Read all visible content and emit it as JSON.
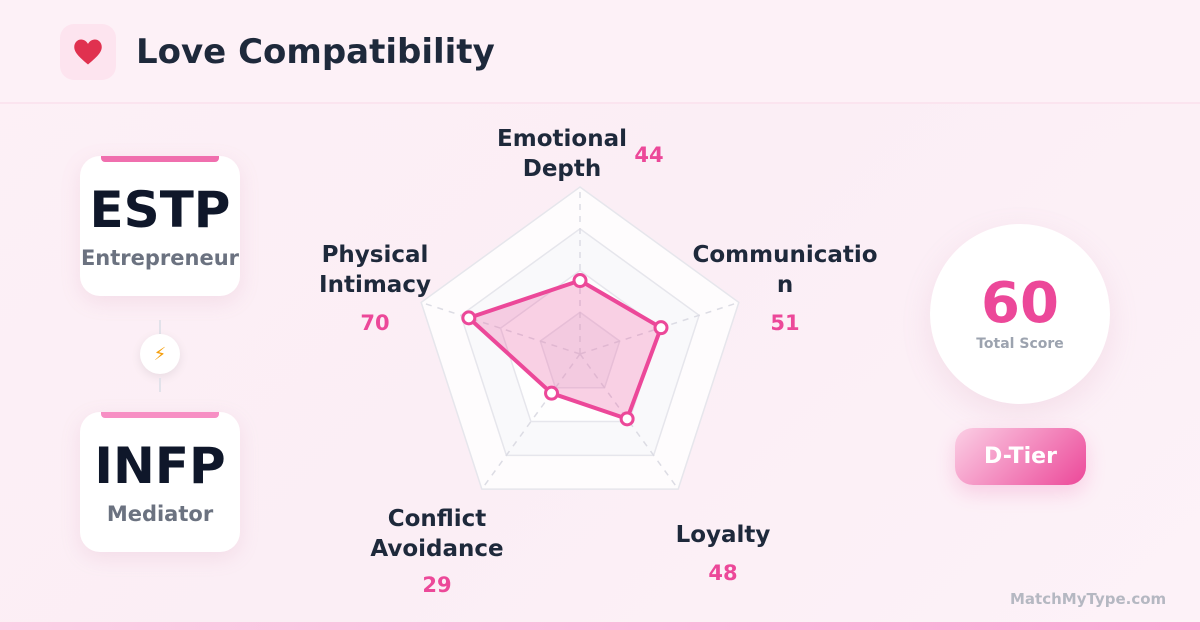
{
  "header": {
    "title": "Love Compatibility",
    "icon": "heart-icon"
  },
  "types": [
    {
      "code": "ESTP",
      "nickname": "Entrepreneur"
    },
    {
      "code": "INFP",
      "nickname": "Mediator"
    }
  ],
  "connector_icon": "lightning-icon",
  "score": {
    "value": "60",
    "label": "Total Score",
    "tier": "D-Tier"
  },
  "brand": "MatchMyType.com",
  "colors": {
    "accent": "#ec4899",
    "heart": "#e0314f",
    "bolt": "#f59e0b"
  },
  "chart_data": {
    "type": "radar",
    "rmax": 100,
    "grid_levels": [
      25,
      50,
      75,
      100
    ],
    "axes": [
      {
        "label": [
          "Emotional",
          "Depth"
        ],
        "value": 44
      },
      {
        "label": [
          "Communicatio",
          "n"
        ],
        "value": 51
      },
      {
        "label": [
          "Loyalty"
        ],
        "value": 48
      },
      {
        "label": [
          "Conflict",
          "Avoidance"
        ],
        "value": 29
      },
      {
        "label": [
          "Physical",
          "Intimacy"
        ],
        "value": 70
      }
    ]
  }
}
